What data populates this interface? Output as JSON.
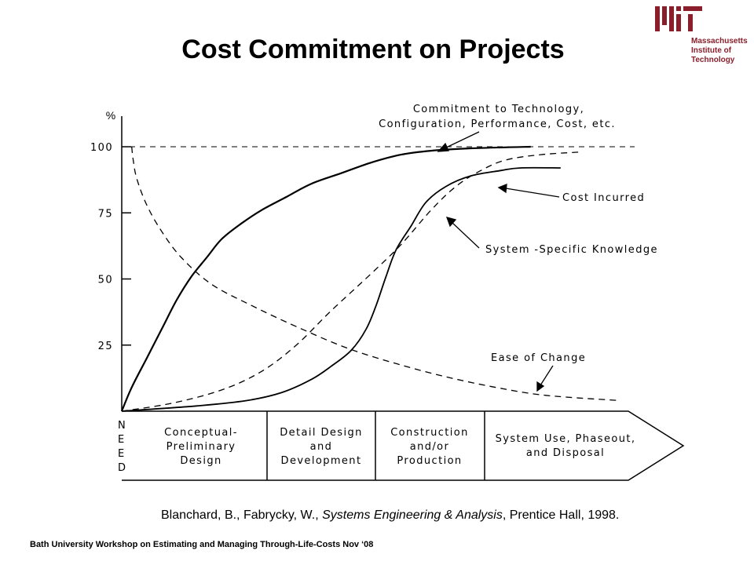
{
  "slide": {
    "title": "Cost Commitment on Projects",
    "logo_lines": [
      "Massachusetts",
      "Institute of",
      "Technology"
    ],
    "logo_color": "#8a1f2b",
    "citation": {
      "authors": "Blanchard, B., Fabrycky, W., ",
      "book": "Systems Engineering & Analysis",
      "rest": ", Prentice Hall, 1998."
    },
    "footer": "Bath University Workshop on Estimating and Managing Through-Life-Costs  Nov ‘08"
  },
  "chart_data": {
    "type": "line",
    "ylabel": "%",
    "yticks": [
      "100",
      "75",
      "50",
      "25"
    ],
    "ylim": [
      0,
      100
    ],
    "phase_labels": [
      [
        "N",
        "E",
        "E",
        "D"
      ],
      [
        "Conceptual-",
        "Preliminary",
        "Design"
      ],
      [
        "Detail Design",
        "and",
        "Development"
      ],
      [
        "Construction",
        "and/or",
        "Production"
      ],
      [
        "System Use, Phaseout,",
        "and Disposal"
      ]
    ],
    "series": [
      {
        "name": "Commitment to Technology, Configuration, Performance, Cost, etc.",
        "style": "solid",
        "points": [
          [
            0,
            0
          ],
          [
            2,
            9
          ],
          [
            5,
            20
          ],
          [
            8,
            31
          ],
          [
            11,
            42
          ],
          [
            14,
            51
          ],
          [
            17,
            58
          ],
          [
            20,
            65
          ],
          [
            24,
            71
          ],
          [
            28,
            76
          ],
          [
            33,
            81
          ],
          [
            38,
            86
          ],
          [
            44,
            90
          ],
          [
            50,
            94
          ],
          [
            56,
            97
          ],
          [
            62,
            98.5
          ],
          [
            70,
            99.4
          ],
          [
            82,
            100
          ]
        ]
      },
      {
        "name": "System-Specific Knowledge",
        "style": "dashed",
        "points": [
          [
            0,
            0
          ],
          [
            10,
            3
          ],
          [
            20,
            8
          ],
          [
            28,
            15
          ],
          [
            35,
            25
          ],
          [
            42,
            38
          ],
          [
            50,
            52
          ],
          [
            56,
            63
          ],
          [
            62,
            76
          ],
          [
            67,
            85
          ],
          [
            72,
            91
          ],
          [
            77,
            95
          ],
          [
            84,
            97
          ],
          [
            92,
            98
          ]
        ]
      },
      {
        "name": "Cost Incurred",
        "style": "solid",
        "points": [
          [
            0,
            0
          ],
          [
            15,
            2
          ],
          [
            25,
            4
          ],
          [
            32,
            7
          ],
          [
            38,
            12
          ],
          [
            42,
            17
          ],
          [
            46,
            23
          ],
          [
            49,
            31
          ],
          [
            51,
            40
          ],
          [
            53,
            51
          ],
          [
            55,
            61
          ],
          [
            58,
            70
          ],
          [
            61,
            79
          ],
          [
            65,
            85
          ],
          [
            70,
            89
          ],
          [
            76,
            91
          ],
          [
            80,
            92
          ],
          [
            88,
            92
          ]
        ]
      },
      {
        "name": "Ease of Change",
        "style": "dashed",
        "points": [
          [
            2,
            100
          ],
          [
            2.3,
            95
          ],
          [
            3,
            88
          ],
          [
            5,
            78
          ],
          [
            8,
            68
          ],
          [
            12,
            58
          ],
          [
            18,
            48
          ],
          [
            26,
            40
          ],
          [
            35,
            32
          ],
          [
            45,
            24
          ],
          [
            55,
            18
          ],
          [
            65,
            13
          ],
          [
            75,
            9
          ],
          [
            85,
            6
          ],
          [
            100,
            4
          ]
        ]
      }
    ],
    "annotations": [
      {
        "lines": [
          "Commitment to Technology,",
          "Configuration, Performance, Cost, etc."
        ],
        "series": 0
      },
      {
        "lines": [
          "Cost Incurred"
        ],
        "series": 2
      },
      {
        "lines": [
          "System -Specific Knowledge"
        ],
        "series": 1
      },
      {
        "lines": [
          "Ease of Change"
        ],
        "series": 3
      }
    ],
    "grid": false
  }
}
